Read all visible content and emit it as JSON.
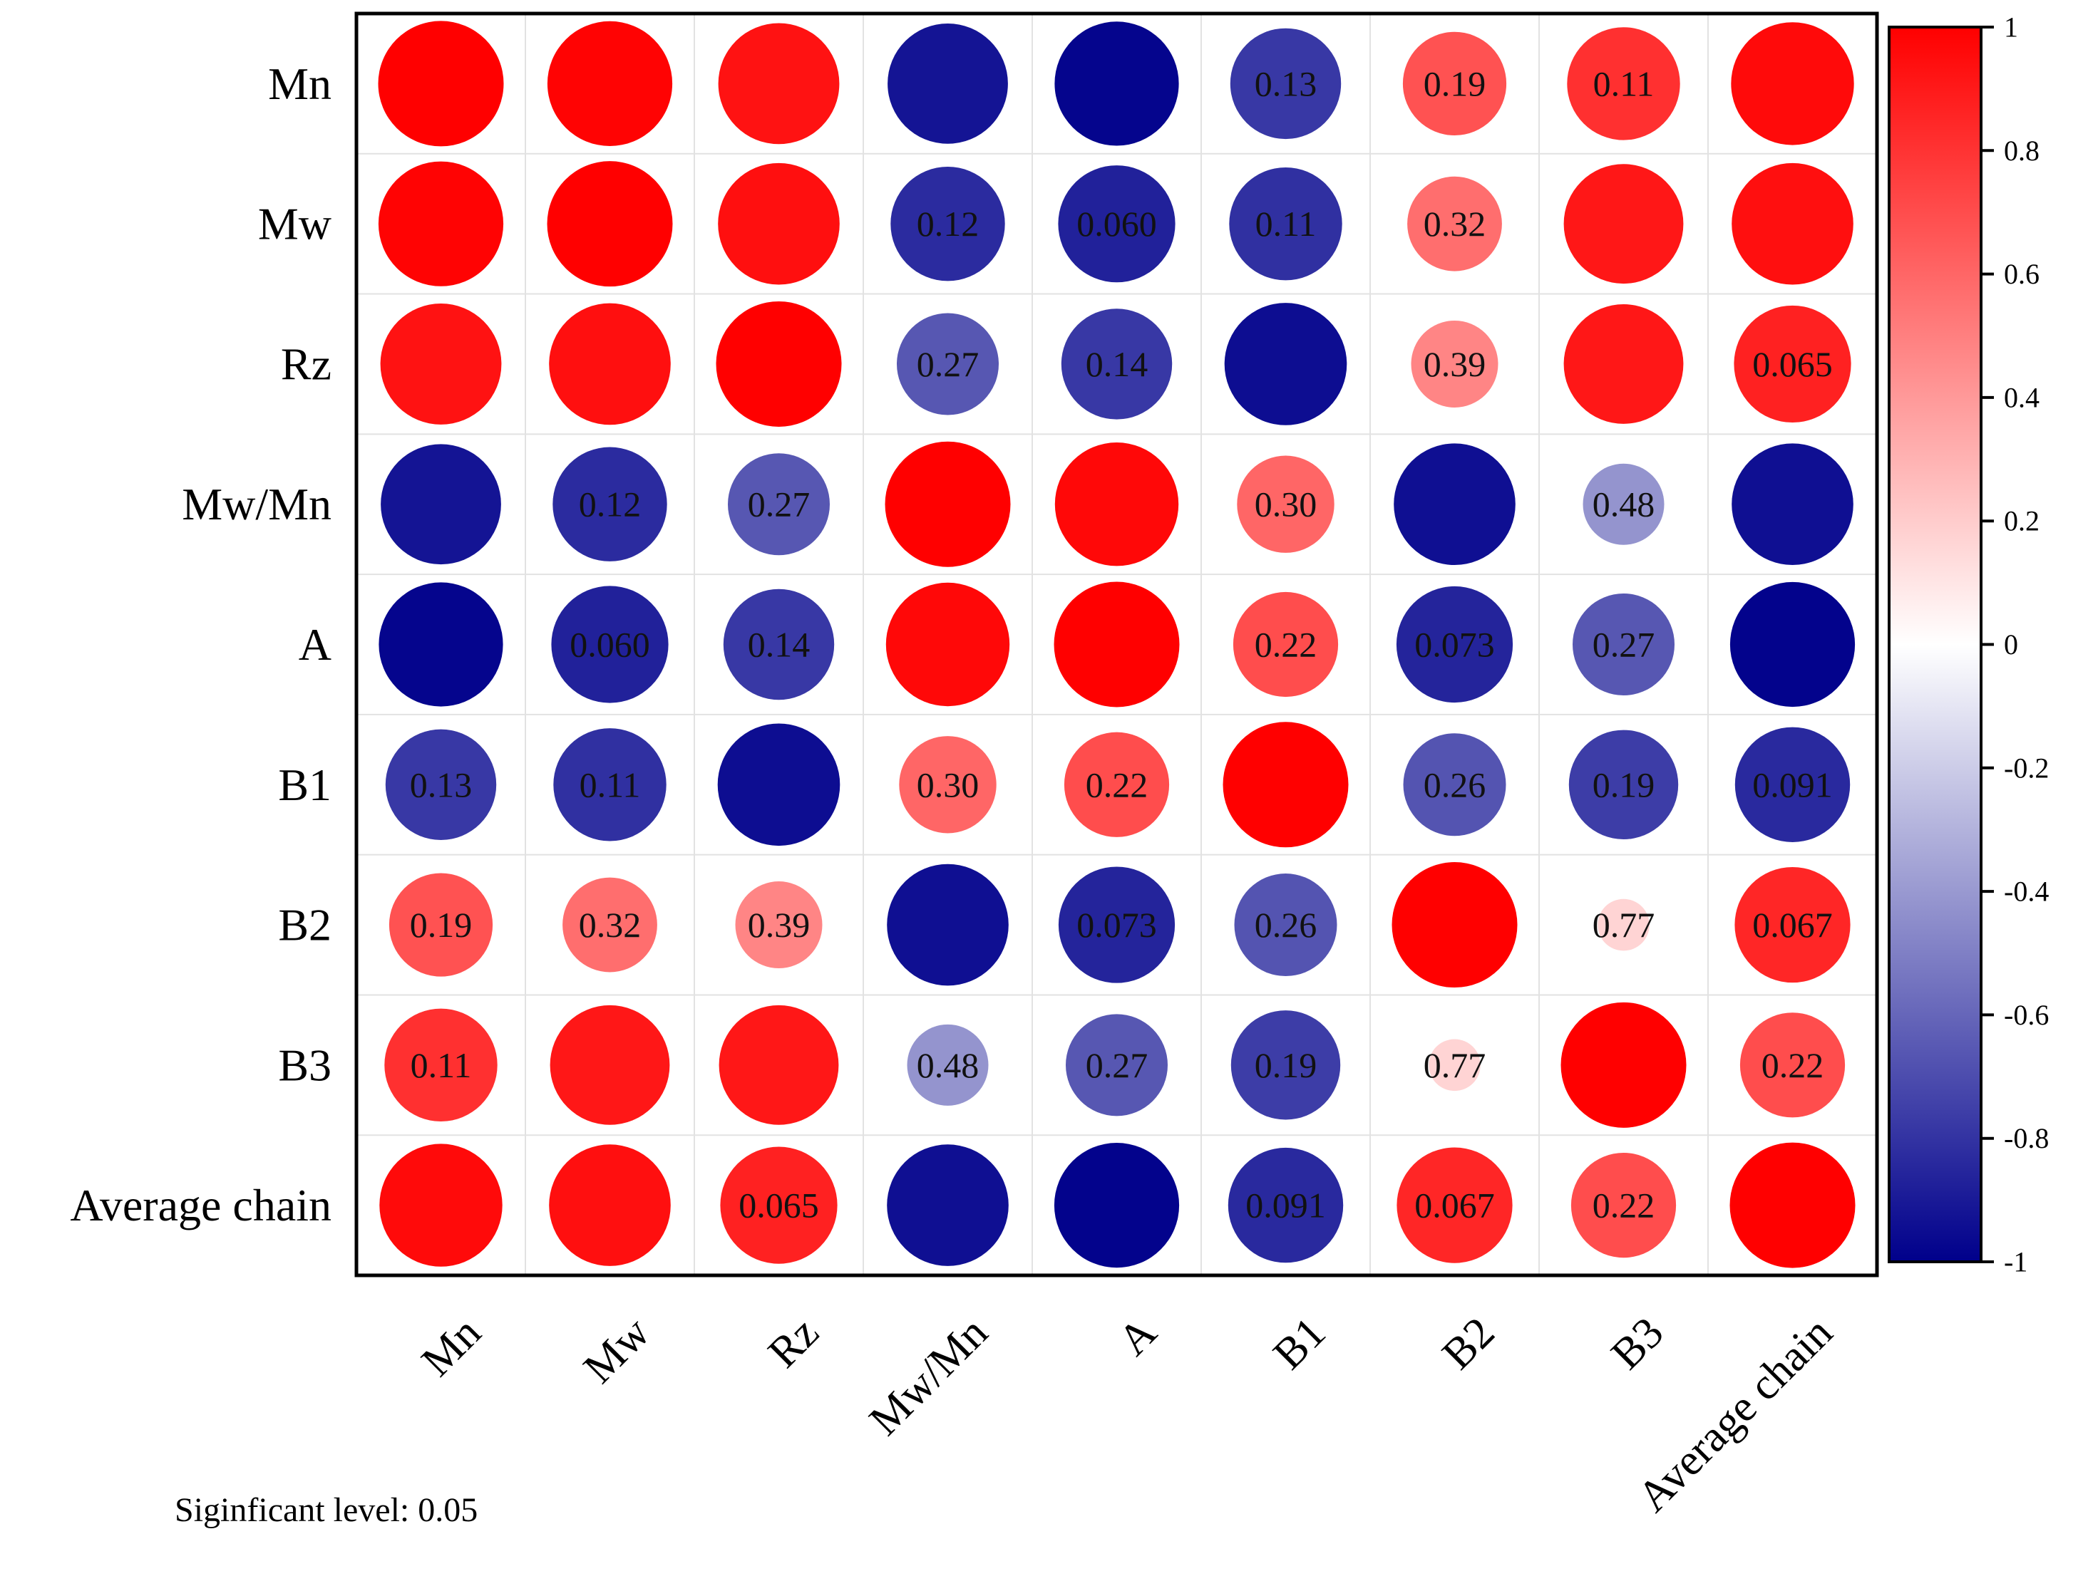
{
  "chart_data": {
    "type": "heatmap",
    "subtype": "correlation-circle-matrix",
    "variables": [
      "Mn",
      "Mw",
      "Rz",
      "Mw/Mn",
      "A",
      "B1",
      "B2",
      "B3",
      "Average chain"
    ],
    "correlation": [
      [
        1.0,
        0.99,
        0.93,
        -0.92,
        -0.98,
        -0.78,
        0.68,
        0.81,
        0.96
      ],
      [
        0.99,
        1.0,
        0.94,
        -0.83,
        -0.87,
        -0.81,
        0.57,
        0.91,
        0.94
      ],
      [
        0.93,
        0.94,
        1.0,
        -0.66,
        -0.78,
        -0.95,
        0.48,
        0.91,
        0.87
      ],
      [
        -0.92,
        -0.83,
        -0.66,
        1.0,
        0.97,
        0.6,
        -0.94,
        -0.42,
        -0.94
      ],
      [
        -0.98,
        -0.87,
        -0.78,
        0.97,
        1.0,
        0.7,
        -0.86,
        -0.66,
        -0.99
      ],
      [
        -0.78,
        -0.81,
        -0.95,
        0.6,
        0.7,
        1.0,
        -0.67,
        -0.76,
        -0.84
      ],
      [
        0.68,
        0.57,
        0.48,
        -0.94,
        -0.86,
        -0.67,
        1.0,
        0.17,
        0.85
      ],
      [
        0.81,
        0.91,
        0.91,
        -0.42,
        -0.66,
        -0.76,
        0.17,
        1.0,
        0.7
      ],
      [
        0.96,
        0.94,
        0.87,
        -0.94,
        -0.99,
        -0.84,
        0.85,
        0.7,
        1.0
      ]
    ],
    "p_values": [
      [
        "",
        "",
        "",
        "",
        "",
        "0.13",
        "0.19",
        "0.11",
        ""
      ],
      [
        "",
        "",
        "",
        "0.12",
        "0.060",
        "0.11",
        "0.32",
        "",
        ""
      ],
      [
        "",
        "",
        "",
        "0.27",
        "0.14",
        "",
        "0.39",
        "",
        "0.065"
      ],
      [
        "",
        "0.12",
        "0.27",
        "",
        "",
        "0.30",
        "",
        "0.48",
        ""
      ],
      [
        "",
        "0.060",
        "0.14",
        "",
        "",
        "0.22",
        "0.073",
        "0.27",
        ""
      ],
      [
        "0.13",
        "0.11",
        "",
        "0.30",
        "0.22",
        "",
        "0.26",
        "0.19",
        "0.091"
      ],
      [
        "0.19",
        "0.32",
        "0.39",
        "",
        "0.073",
        "0.26",
        "",
        "0.77",
        "0.067"
      ],
      [
        "0.11",
        "",
        "",
        "0.48",
        "0.27",
        "0.19",
        "0.77",
        "",
        "0.22"
      ],
      [
        "",
        "",
        "0.065",
        "",
        "",
        "0.091",
        "0.067",
        "0.22",
        ""
      ]
    ],
    "colorbar": {
      "min": -1,
      "max": 1,
      "ticks": [
        "1",
        "0.8",
        "0.6",
        "0.4",
        "0.2",
        "0",
        "-0.2",
        "-0.4",
        "-0.6",
        "-0.8",
        "-1"
      ],
      "colors": {
        "negative": "#00008b",
        "zero": "#ffffff",
        "positive": "#ff0000"
      }
    },
    "note": "Siginficant level: 0.05"
  }
}
